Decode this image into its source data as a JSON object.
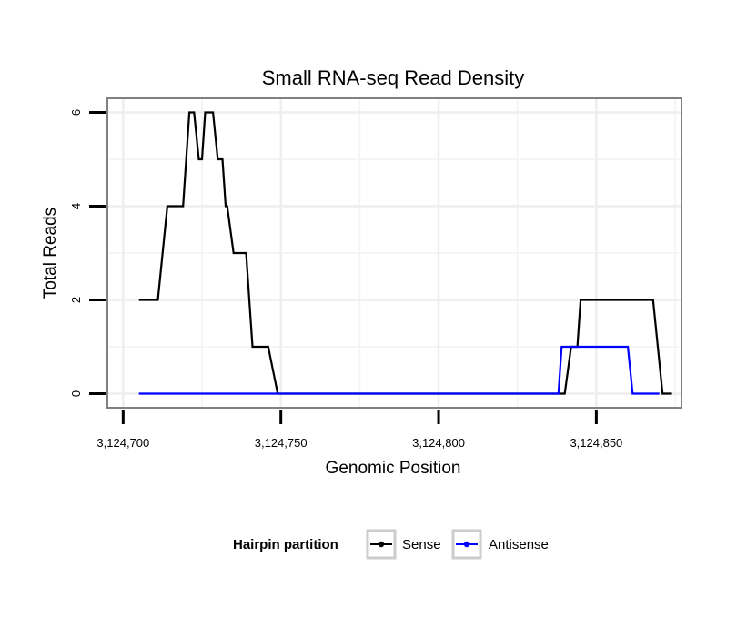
{
  "chart_data": {
    "type": "line",
    "title": "Small RNA-seq Read Density",
    "xlabel": "Genomic Position",
    "ylabel": "Total Reads",
    "xlim": [
      3124695,
      3124877
    ],
    "ylim": [
      -0.3,
      6.3
    ],
    "x_ticks": [
      3124700,
      3124750,
      3124800,
      3124850
    ],
    "x_tick_labels": [
      "3,124,700",
      "3,124,750",
      "3,124,800",
      "3,124,850"
    ],
    "y_ticks": [
      0,
      2,
      4,
      6
    ],
    "y_tick_labels": [
      "0",
      "2",
      "4",
      "6"
    ],
    "grid": true,
    "legend": {
      "title": "Hairpin partition",
      "position": "bottom"
    },
    "series": [
      {
        "name": "Sense",
        "color": "#000000",
        "points": [
          [
            3124705,
            2
          ],
          [
            3124711,
            2
          ],
          [
            3124714,
            4
          ],
          [
            3124719,
            4
          ],
          [
            3124721,
            6
          ],
          [
            3124722.5,
            6
          ],
          [
            3124724,
            5
          ],
          [
            3124725,
            5
          ],
          [
            3124726,
            6
          ],
          [
            3124728.5,
            6
          ],
          [
            3124730,
            5
          ],
          [
            3124731.5,
            5
          ],
          [
            3124732.5,
            4
          ],
          [
            3124733,
            4
          ],
          [
            3124735,
            3
          ],
          [
            3124739,
            3
          ],
          [
            3124741,
            1
          ],
          [
            3124746,
            1
          ],
          [
            3124749,
            0
          ],
          [
            3124840,
            0
          ],
          [
            3124842,
            1
          ],
          [
            3124844,
            1
          ],
          [
            3124845,
            2
          ],
          [
            3124868,
            2
          ],
          [
            3124871,
            0
          ],
          [
            3124874,
            0
          ]
        ]
      },
      {
        "name": "Antisense",
        "color": "#0000ff",
        "points": [
          [
            3124705,
            0
          ],
          [
            3124838,
            0
          ],
          [
            3124839,
            1
          ],
          [
            3124860,
            1
          ],
          [
            3124861.5,
            0
          ],
          [
            3124870,
            0
          ]
        ]
      }
    ]
  }
}
